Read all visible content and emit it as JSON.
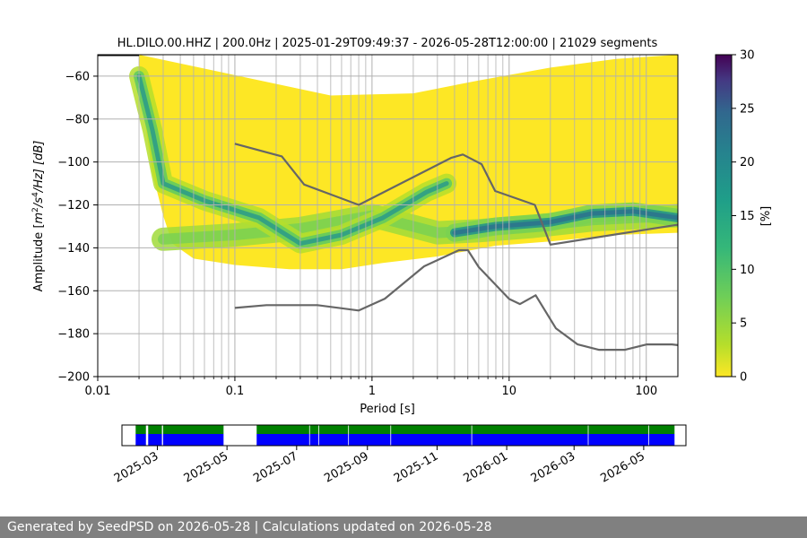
{
  "footer": {
    "generated_prefix": "Generated by SeedPSD on",
    "generated_date": "2026-05-28",
    "separator": "|",
    "updated_prefix": "Calculations updated on",
    "updated_date": "2026-05-28"
  },
  "chart_data": [
    {
      "type": "heatmap",
      "title": "HL.DILO.00.HHZ | 200.0Hz | 2025-01-29T09:49:37 - 2026-05-28T12:00:00 | 21029 segments",
      "xlabel": "Period [s]",
      "ylabel": "Amplitude [m²/s⁴/Hz] [dB]",
      "ylabel_parts": {
        "prefix": "Amplitude [",
        "base1": "m",
        "sup1": "2",
        "mid": "/s",
        "sup2": "4",
        "suffix": "/Hz] [dB]"
      },
      "x_scale": "log",
      "xlim": [
        0.01,
        170
      ],
      "ylim": [
        -200,
        -50
      ],
      "x_ticks": [
        0.01,
        0.1,
        1,
        10,
        100
      ],
      "x_tick_labels": [
        "0.01",
        "0.1",
        "1",
        "10",
        "100"
      ],
      "y_ticks": [
        -200,
        -180,
        -160,
        -140,
        -120,
        -100,
        -80,
        -60
      ],
      "y_tick_labels": [
        "−200",
        "−180",
        "−160",
        "−140",
        "−120",
        "−100",
        "−80",
        "−60"
      ],
      "grid": true,
      "colormap": "viridis_r",
      "colorbar": {
        "label": "[%]",
        "range": [
          0,
          30
        ],
        "ticks": [
          0,
          5,
          10,
          15,
          20,
          25,
          30
        ]
      },
      "ridges": [
        {
          "name": "low",
          "points": [
            [
              0.03,
              -136
            ],
            [
              0.1,
              -134
            ],
            [
              0.3,
              -131
            ],
            [
              1,
              -125
            ],
            [
              3,
              -133
            ],
            [
              6,
              -132
            ],
            [
              15,
              -130
            ],
            [
              40,
              -127
            ],
            [
              170,
              -125
            ]
          ]
        },
        {
          "name": "microseism",
          "points": [
            [
              0.02,
              -60
            ],
            [
              0.025,
              -85
            ],
            [
              0.03,
              -110
            ],
            [
              0.06,
              -118
            ],
            [
              0.15,
              -126
            ],
            [
              0.3,
              -138
            ],
            [
              0.6,
              -134
            ],
            [
              1.2,
              -126
            ],
            [
              2.5,
              -114
            ],
            [
              3.5,
              -110
            ]
          ]
        },
        {
          "name": "long-period",
          "points": [
            [
              4,
              -133
            ],
            [
              8,
              -130
            ],
            [
              20,
              -128
            ],
            [
              40,
              -124
            ],
            [
              80,
              -123
            ],
            [
              170,
              -126
            ]
          ]
        }
      ],
      "noise_models": [
        {
          "name": "high",
          "points": [
            [
              0.1,
              -91.5
            ],
            [
              0.22,
              -97.4
            ],
            [
              0.32,
              -110.5
            ],
            [
              0.8,
              -120
            ],
            [
              3.8,
              -98
            ],
            [
              4.6,
              -96.5
            ],
            [
              6.3,
              -101
            ],
            [
              7.9,
              -113.5
            ],
            [
              15.4,
              -120
            ],
            [
              20,
              -138.5
            ],
            [
              354.8,
              -126
            ]
          ]
        },
        {
          "name": "low",
          "points": [
            [
              0.1,
              -168
            ],
            [
              0.17,
              -166.7
            ],
            [
              0.4,
              -166.7
            ],
            [
              0.8,
              -169.2
            ],
            [
              1.24,
              -163.7
            ],
            [
              2.4,
              -148.6
            ],
            [
              4.3,
              -141.1
            ],
            [
              5,
              -141.1
            ],
            [
              6,
              -149
            ],
            [
              10,
              -163.8
            ],
            [
              12,
              -166.2
            ],
            [
              15.6,
              -162.1
            ],
            [
              21.9,
              -177.5
            ],
            [
              31.6,
              -185
            ],
            [
              45,
              -187.5
            ],
            [
              70,
              -187.5
            ],
            [
              101,
              -185
            ],
            [
              154,
              -185
            ],
            [
              328,
              -187.5
            ]
          ]
        }
      ]
    },
    {
      "type": "bar",
      "title": "",
      "x_tick_labels": [
        "2025-03",
        "2025-05",
        "2025-07",
        "2025-09",
        "2025-11",
        "2026-01",
        "2026-03",
        "2026-05"
      ],
      "xlim": [
        "2025-01-29",
        "2026-06-07"
      ],
      "colors": {
        "coverage": "#0000ff",
        "psd": "#008000"
      },
      "coverage_segments": [
        {
          "start": "2025-02-10",
          "end": "2025-02-19"
        },
        {
          "start": "2025-02-21",
          "end": "2025-03-05"
        },
        {
          "start": "2025-03-06",
          "end": "2025-04-28"
        },
        {
          "start": "2025-05-27",
          "end": "2026-05-28"
        }
      ]
    }
  ]
}
